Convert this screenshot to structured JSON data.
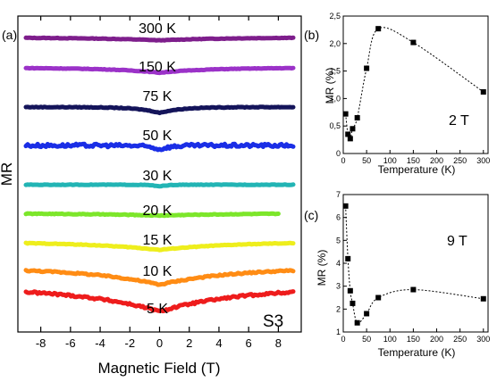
{
  "chart_data": [
    {
      "panel": "(a)",
      "type": "line",
      "xlabel": "Magnetic Field (T)",
      "ylabel": "MR",
      "xlim": [
        -9,
        9
      ],
      "x_ticks": [
        -8,
        -6,
        -4,
        -2,
        0,
        2,
        4,
        6,
        8
      ],
      "x_tick_labels": [
        "-8",
        "-6",
        "-4",
        "-2",
        "0",
        "2",
        "4",
        "6",
        "8"
      ],
      "sample_label": "S3",
      "series": [
        {
          "name": "300 K",
          "color": "#7e1e8c",
          "x_range": [
            -9,
            9
          ],
          "dip_depth": 0.32,
          "dip_width": 4.5,
          "noise": 0.03
        },
        {
          "name": "150 K",
          "color": "#9b32c8",
          "x_range": [
            -9,
            9
          ],
          "dip_depth": 0.55,
          "dip_width": 3.2,
          "noise": 0.03
        },
        {
          "name": "75 K",
          "color": "#14145a",
          "x_range": [
            -9,
            9
          ],
          "dip_depth": 0.65,
          "dip_width": 1.4,
          "noise": 0.04
        },
        {
          "name": "50 K",
          "color": "#1a2ee6",
          "x_range": [
            -9,
            9
          ],
          "dip_depth": 0.45,
          "dip_width": 0.7,
          "noise": 0.18
        },
        {
          "name": "30 K",
          "color": "#22b4b4",
          "x_range": [
            -9,
            9
          ],
          "dip_depth": 0.2,
          "dip_width": 0.5,
          "noise": 0.03
        },
        {
          "name": "20 K",
          "color": "#7ce62a",
          "x_range": [
            -9,
            8
          ],
          "dip_depth": 0.25,
          "dip_width": 5.5,
          "noise": 0.04
        },
        {
          "name": "15 K",
          "color": "#eeee1c",
          "x_range": [
            -9,
            9
          ],
          "dip_depth": 0.9,
          "dip_width": 5.0,
          "noise": 0.04
        },
        {
          "name": "10 K",
          "color": "#ff8c14",
          "x_range": [
            -9,
            9
          ],
          "dip_depth": 1.9,
          "dip_width": 5.0,
          "noise": 0.08
        },
        {
          "name": "5 K",
          "color": "#ee1c1c",
          "x_range": [
            -9,
            9
          ],
          "dip_depth": 2.7,
          "dip_width": 5.5,
          "noise": 0.12
        }
      ]
    },
    {
      "panel": "(b)",
      "type": "scatter",
      "xlabel": "Temperature (K)",
      "ylabel": "MR (%)",
      "xlim": [
        0,
        310
      ],
      "ylim": [
        0,
        2.5
      ],
      "x_ticks": [
        0,
        50,
        100,
        150,
        200,
        250,
        300
      ],
      "y_ticks": [
        0,
        0.5,
        1.0,
        1.5,
        2.0,
        2.5
      ],
      "y_tick_labels": [
        "0",
        "0,5",
        "1,0",
        "1,5",
        "2,0",
        "2,5"
      ],
      "annotation": "2 T",
      "x": [
        5,
        10,
        15,
        20,
        30,
        50,
        75,
        150,
        300
      ],
      "y": [
        0.72,
        0.35,
        0.27,
        0.45,
        0.65,
        1.55,
        2.27,
        2.02,
        1.12
      ]
    },
    {
      "panel": "(c)",
      "type": "scatter",
      "xlabel": "Temperature (K)",
      "ylabel": "MR (%)",
      "xlim": [
        0,
        310
      ],
      "ylim": [
        1,
        7
      ],
      "x_ticks": [
        0,
        50,
        100,
        150,
        200,
        250,
        300
      ],
      "y_ticks": [
        1,
        2,
        3,
        4,
        5,
        6,
        7
      ],
      "annotation": "9 T",
      "x": [
        5,
        10,
        15,
        20,
        30,
        50,
        75,
        150,
        300
      ],
      "y": [
        6.5,
        4.2,
        2.8,
        2.25,
        1.4,
        1.8,
        2.5,
        2.85,
        2.45
      ]
    }
  ]
}
